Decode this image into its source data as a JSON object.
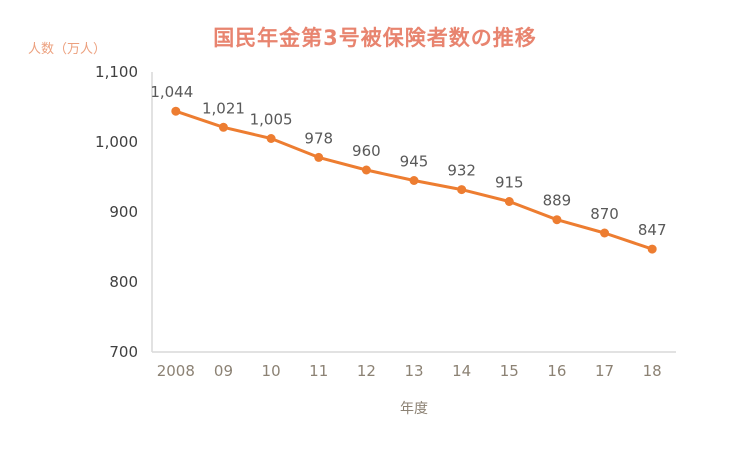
{
  "title": "国民年金第3号被保険者数の推移",
  "y_unit_label": "人数（万人）",
  "chart_data": {
    "type": "line",
    "title": "国民年金第3号被保険者数の推移",
    "xlabel": "年度",
    "ylabel": "人数（万人）",
    "categories": [
      "2008",
      "09",
      "10",
      "11",
      "12",
      "13",
      "14",
      "15",
      "16",
      "17",
      "18"
    ],
    "values": [
      1044,
      1021,
      1005,
      978,
      960,
      945,
      932,
      915,
      889,
      870,
      847
    ],
    "data_labels": [
      "1,044",
      "1,021",
      "1,005",
      "978",
      "960",
      "945",
      "932",
      "915",
      "889",
      "870",
      "847"
    ],
    "ylim": [
      700,
      1100
    ],
    "ytick_step": 100,
    "ytick_labels": [
      "700",
      "800",
      "900",
      "1,000",
      "1,100"
    ],
    "grid": false,
    "legend": "none",
    "line_color": "#ed7d31",
    "marker_color": "#ed7d31",
    "axis_color": "#d9d9d9",
    "data_label_color": "#595959",
    "x_tick_color": "#8c8274",
    "y_tick_color": "#404040"
  }
}
